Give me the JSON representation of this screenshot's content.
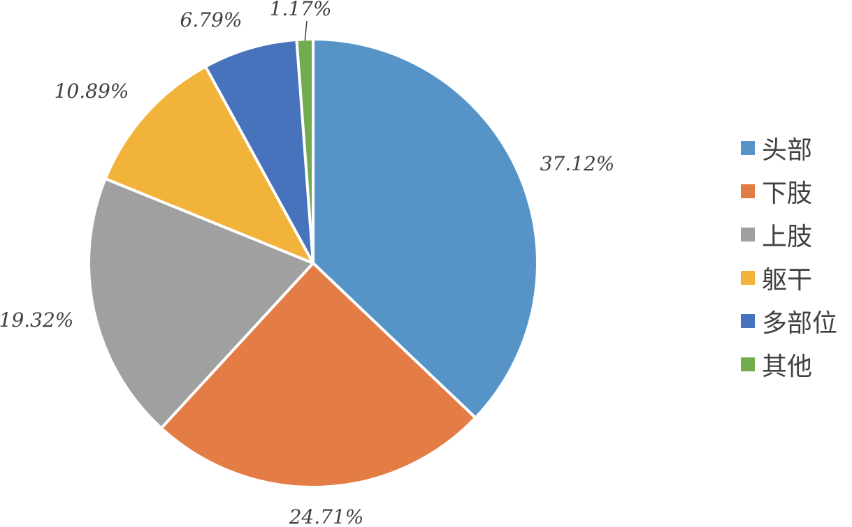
{
  "chart_data": {
    "type": "pie",
    "categories": [
      "头部",
      "下肢",
      "上肢",
      "躯干",
      "多部位",
      "其他"
    ],
    "values": [
      37.12,
      24.71,
      19.32,
      10.89,
      6.79,
      1.17
    ],
    "data_labels": [
      "37.12%",
      "24.71%",
      "19.32%",
      "10.89%",
      "6.79%",
      "1.17%"
    ],
    "colors": [
      "#5694C8",
      "#E47C45",
      "#A0A0A0",
      "#F2B33A",
      "#4673BB",
      "#72AC4F"
    ],
    "start_angle": "12 o'clock",
    "direction": "clockwise",
    "legend_position": "right",
    "title": "",
    "xlabel": "",
    "ylabel": ""
  }
}
